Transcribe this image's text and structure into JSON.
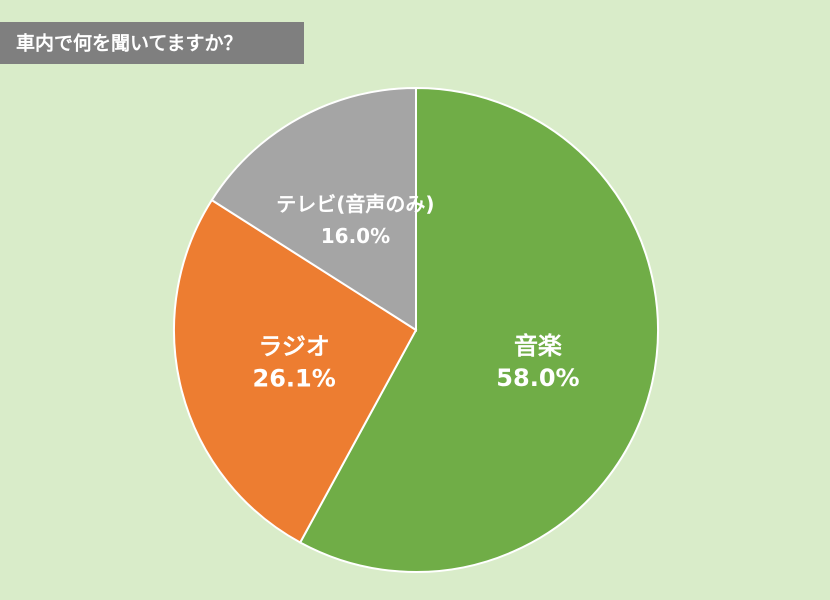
{
  "chart_data": {
    "type": "pie",
    "title": "車内で何を聞いてますか？",
    "categories": [
      "音楽",
      "ラジオ",
      "テレビ(音声のみ)"
    ],
    "values": [
      58.0,
      26.1,
      16.0
    ],
    "value_labels": [
      "58.0%",
      "26.1%",
      "16.0%"
    ],
    "colors": [
      "#70ad47",
      "#ed7d31",
      "#a5a5a5"
    ]
  }
}
